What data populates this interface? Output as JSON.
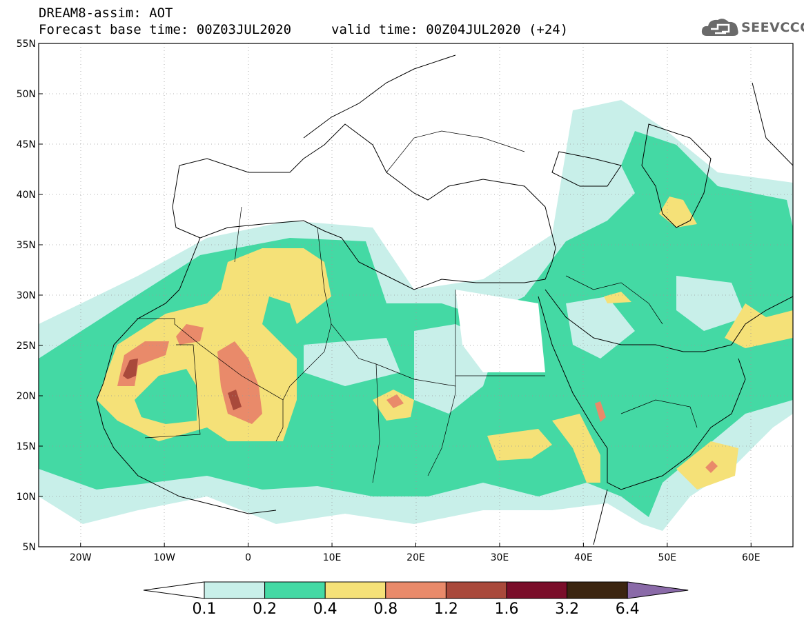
{
  "header": {
    "line1": "DREAM8-assim: AOT",
    "line2": "Forecast base time: 00Z03JUL2020",
    "valid": "valid time: 00Z04JUL2020 (+24)"
  },
  "logo": {
    "text": "SEEVCCC",
    "icon": "cloud-icon"
  },
  "map": {
    "lat_labels": [
      "55N",
      "50N",
      "45N",
      "40N",
      "35N",
      "30N",
      "25N",
      "20N",
      "15N",
      "10N",
      "5N"
    ],
    "lat_values": [
      55,
      50,
      45,
      40,
      35,
      30,
      25,
      20,
      15,
      10,
      5
    ],
    "lon_labels": [
      "20W",
      "10W",
      "0",
      "10E",
      "20E",
      "30E",
      "40E",
      "50E",
      "60E"
    ],
    "lon_values": [
      -20,
      -10,
      0,
      10,
      20,
      30,
      40,
      50,
      60
    ],
    "extent": {
      "lon": [
        -25,
        65
      ],
      "lat": [
        5,
        55
      ]
    }
  },
  "colorbar": {
    "labels": [
      "0.1",
      "0.2",
      "0.4",
      "0.8",
      "1.2",
      "1.6",
      "3.2",
      "6.4"
    ],
    "colors": [
      "#ffffff",
      "#c8efe9",
      "#44d9a4",
      "#f5e178",
      "#e98a6a",
      "#a9493b",
      "#7a0e2a",
      "#3b2510",
      "#8a6aa8"
    ]
  }
}
